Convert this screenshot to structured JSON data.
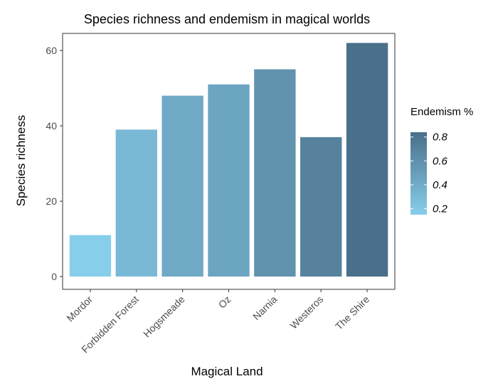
{
  "chart_data": {
    "type": "bar",
    "title": "Species richness and endemism in magical worlds",
    "xlabel": "Magical Land",
    "ylabel": "Species richness",
    "categories": [
      "Mordor",
      "Forbidden Forest",
      "Hogsmeade",
      "Oz",
      "Narnia",
      "Westeros",
      "The Shire"
    ],
    "values": [
      11,
      39,
      48,
      51,
      55,
      37,
      62
    ],
    "endemism": [
      0.15,
      0.3,
      0.42,
      0.45,
      0.58,
      0.7,
      0.84
    ],
    "ylim": [
      0,
      65
    ],
    "yticks": [
      0,
      20,
      40,
      60
    ],
    "grid": false,
    "legend": {
      "title": "Endemism %",
      "position": "right",
      "ticks": [
        0.2,
        0.4,
        0.6,
        0.8
      ],
      "range": [
        0.15,
        0.84
      ],
      "color_low": "#87CEEB",
      "color_high": "#4A6F8A"
    }
  }
}
